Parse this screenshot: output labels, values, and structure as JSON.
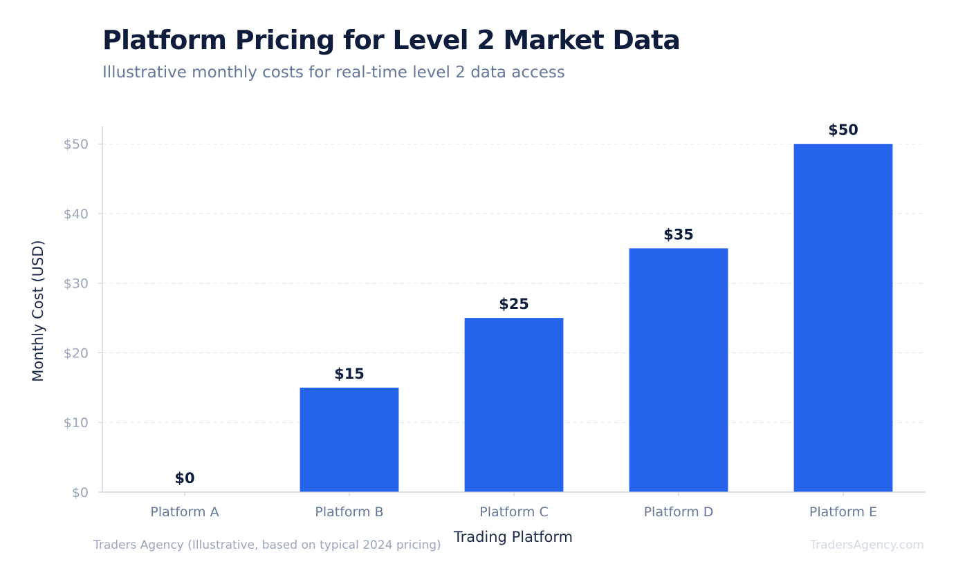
{
  "header": {
    "title": "Platform Pricing for Level 2 Market Data",
    "subtitle": "Illustrative monthly costs for real-time level 2 data access"
  },
  "footer": {
    "source": "Traders Agency (Illustrative, based on typical 2024 pricing)",
    "brand": "TradersAgency.com"
  },
  "colors": {
    "bar": "#2563eb",
    "grid": "#e5e9f0",
    "axis": "#c4ccd8"
  },
  "chart_data": {
    "type": "bar",
    "categories": [
      "Platform A",
      "Platform B",
      "Platform C",
      "Platform D",
      "Platform E"
    ],
    "values": [
      0,
      15,
      25,
      35,
      50
    ],
    "data_labels": [
      "$0",
      "$15",
      "$25",
      "$35",
      "$50"
    ],
    "xlabel": "Trading Platform",
    "ylabel": "Monthly Cost (USD)",
    "ylim": [
      0,
      52.5
    ],
    "yticks": [
      0,
      10,
      20,
      30,
      40,
      50
    ],
    "ytick_labels": [
      "$0",
      "$10",
      "$20",
      "$30",
      "$40",
      "$50"
    ],
    "grid": true,
    "legend": "none"
  }
}
